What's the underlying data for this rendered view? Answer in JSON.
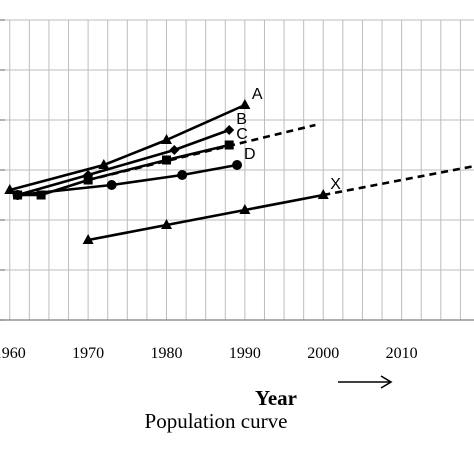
{
  "chart_data": {
    "type": "line",
    "title": "",
    "xlabel": "Year",
    "ylabel": "",
    "caption": "Population curve",
    "x_ticks": [
      "1960",
      "1970",
      "1980",
      "1990",
      "2000",
      "2010"
    ],
    "xlim": [
      1958.5,
      2020
    ],
    "ylim": [
      0,
      6
    ],
    "grid": true,
    "series": [
      {
        "name": "A",
        "marker": "triangle",
        "dashed": false,
        "points": [
          [
            1960,
            2.6
          ],
          [
            1972,
            3.1
          ],
          [
            1980,
            3.6
          ],
          [
            1990,
            4.3
          ]
        ]
      },
      {
        "name": "B",
        "marker": "diamond",
        "dashed": false,
        "points": [
          [
            1961,
            2.5
          ],
          [
            1970,
            2.9
          ],
          [
            1981,
            3.4
          ],
          [
            1988,
            3.8
          ]
        ]
      },
      {
        "name": "C",
        "marker": "square",
        "dashed": false,
        "points": [
          [
            1961,
            2.5
          ],
          [
            1964,
            2.5
          ],
          [
            1970,
            2.8
          ],
          [
            1980,
            3.2
          ],
          [
            1988,
            3.5
          ]
        ]
      },
      {
        "name": "D",
        "marker": "circle",
        "dashed": false,
        "points": [
          [
            1961,
            2.5
          ],
          [
            1973,
            2.7
          ],
          [
            1982,
            2.9
          ],
          [
            1989,
            3.1
          ]
        ]
      },
      {
        "name": "",
        "marker": "none",
        "dashed": true,
        "points": [
          [
            1970,
            2.8
          ],
          [
            1999,
            3.9
          ]
        ]
      },
      {
        "name": "X",
        "marker": "triangle",
        "dashed": false,
        "points": [
          [
            1970,
            1.6
          ],
          [
            1980,
            1.9
          ],
          [
            1990,
            2.2
          ],
          [
            2000,
            2.5
          ]
        ]
      },
      {
        "name": "",
        "marker": "none",
        "dashed": true,
        "points": [
          [
            2000,
            2.5
          ],
          [
            2020,
            3.1
          ]
        ]
      }
    ]
  },
  "colors": {
    "line": "#000000",
    "grid": "#bdbdbd",
    "axis": "#7f7f7f"
  },
  "arrow_icon": "right-arrow-icon"
}
